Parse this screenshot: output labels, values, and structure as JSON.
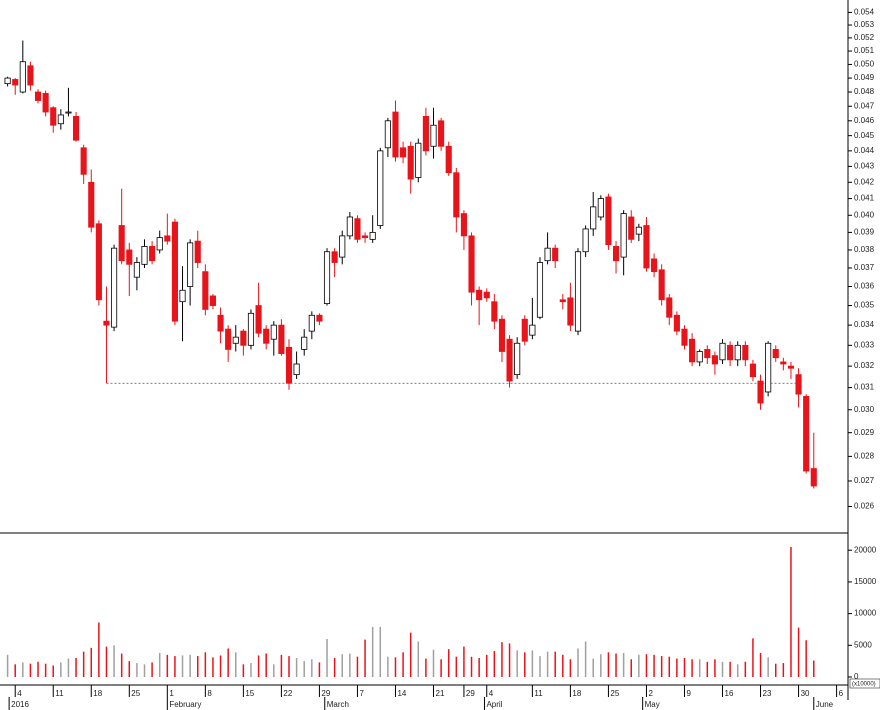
{
  "chart_data": {
    "type": "candlestick",
    "log_scale": true,
    "up_color": "#ffffff",
    "down_color": "#e8141b",
    "volume_up_color": "#a0a0a0",
    "hline": 0.0312,
    "open": [
      0.0486,
      0.0489,
      0.048,
      0.0499,
      0.048,
      0.0479,
      0.0469,
      0.0458,
      0.0466,
      0.0463,
      0.0442,
      0.042,
      0.0395,
      0.0342,
      0.0339,
      0.0394,
      0.038,
      0.0365,
      0.0372,
      0.0382,
      0.038,
      0.0388,
      0.0396,
      0.0352,
      0.036,
      0.0385,
      0.0368,
      0.0355,
      0.0345,
      0.0338,
      0.0331,
      0.0337,
      0.033,
      0.035,
      0.0338,
      0.0333,
      0.034,
      0.0329,
      0.0316,
      0.0328,
      0.0337,
      0.0345,
      0.0351,
      0.0379,
      0.0376,
      0.0388,
      0.0398,
      0.0388,
      0.0386,
      0.0394,
      0.0442,
      0.0466,
      0.0442,
      0.0443,
      0.0423,
      0.0463,
      0.0443,
      0.046,
      0.0443,
      0.0426,
      0.0401,
      0.0388,
      0.0358,
      0.0357,
      0.0352,
      0.0343,
      0.0333,
      0.0316,
      0.0343,
      0.0335,
      0.0344,
      0.0374,
      0.0381,
      0.0353,
      0.0354,
      0.0337,
      0.0379,
      0.0392,
      0.0399,
      0.0411,
      0.0382,
      0.0376,
      0.0399,
      0.0389,
      0.0394,
      0.0375,
      0.0369,
      0.0354,
      0.0345,
      0.0338,
      0.0333,
      0.0322,
      0.0328,
      0.0325,
      0.0323,
      0.033,
      0.0323,
      0.033,
      0.0321,
      0.0313,
      0.0308,
      0.0328,
      0.0322,
      0.032,
      0.0316,
      0.0306,
      0.0275
    ],
    "high": [
      0.0491,
      0.049,
      0.0518,
      0.0502,
      0.0482,
      0.0481,
      0.047,
      0.0468,
      0.0483,
      0.0466,
      0.0444,
      0.0428,
      0.0397,
      0.036,
      0.0383,
      0.0416,
      0.0384,
      0.0376,
      0.0386,
      0.0385,
      0.0391,
      0.0401,
      0.0398,
      0.0371,
      0.0386,
      0.0391,
      0.0372,
      0.0356,
      0.0349,
      0.034,
      0.034,
      0.0338,
      0.0348,
      0.0362,
      0.034,
      0.0342,
      0.0343,
      0.0333,
      0.0327,
      0.0338,
      0.0347,
      0.0346,
      0.0381,
      0.0381,
      0.0391,
      0.0402,
      0.04,
      0.039,
      0.04,
      0.0442,
      0.0462,
      0.0474,
      0.0446,
      0.0446,
      0.0448,
      0.0469,
      0.0469,
      0.0462,
      0.0446,
      0.0429,
      0.0403,
      0.039,
      0.036,
      0.0359,
      0.0356,
      0.0345,
      0.0335,
      0.0334,
      0.0345,
      0.0354,
      0.0376,
      0.039,
      0.0383,
      0.0356,
      0.0362,
      0.0381,
      0.0394,
      0.0414,
      0.0412,
      0.0413,
      0.0385,
      0.0403,
      0.0403,
      0.0395,
      0.0399,
      0.0378,
      0.0372,
      0.0356,
      0.0347,
      0.034,
      0.0336,
      0.0328,
      0.033,
      0.0327,
      0.0333,
      0.0332,
      0.0332,
      0.0332,
      0.0323,
      0.0316,
      0.0332,
      0.033,
      0.0324,
      0.0322,
      0.0319,
      0.0307,
      0.029
    ],
    "low": [
      0.0484,
      0.0478,
      0.0479,
      0.0481,
      0.0472,
      0.0463,
      0.0452,
      0.0454,
      0.0463,
      0.0446,
      0.0419,
      0.039,
      0.035,
      0.0312,
      0.0337,
      0.0372,
      0.0355,
      0.0358,
      0.037,
      0.0372,
      0.0378,
      0.0383,
      0.034,
      0.0332,
      0.035,
      0.037,
      0.0345,
      0.0348,
      0.0331,
      0.0322,
      0.0327,
      0.0325,
      0.0328,
      0.0334,
      0.0328,
      0.0325,
      0.0325,
      0.0309,
      0.0314,
      0.0325,
      0.0333,
      0.034,
      0.035,
      0.0365,
      0.0372,
      0.0386,
      0.0384,
      0.0384,
      0.0384,
      0.0392,
      0.0436,
      0.0433,
      0.0432,
      0.0413,
      0.042,
      0.0437,
      0.0435,
      0.044,
      0.0424,
      0.039,
      0.038,
      0.035,
      0.034,
      0.0352,
      0.0338,
      0.0322,
      0.031,
      0.0314,
      0.033,
      0.0333,
      0.0343,
      0.0372,
      0.037,
      0.0348,
      0.0337,
      0.0335,
      0.0376,
      0.0388,
      0.0397,
      0.038,
      0.0367,
      0.0366,
      0.0384,
      0.0385,
      0.0368,
      0.0365,
      0.035,
      0.034,
      0.0335,
      0.0328,
      0.032,
      0.032,
      0.0321,
      0.0316,
      0.0321,
      0.032,
      0.032,
      0.032,
      0.0313,
      0.03,
      0.0306,
      0.0322,
      0.0318,
      0.0314,
      0.0301,
      0.0273,
      0.0267
    ],
    "close": [
      0.049,
      0.0485,
      0.0502,
      0.0485,
      0.0474,
      0.0466,
      0.0457,
      0.0464,
      0.0466,
      0.0447,
      0.0425,
      0.0393,
      0.0353,
      0.034,
      0.0381,
      0.0374,
      0.0372,
      0.0373,
      0.0382,
      0.0374,
      0.0387,
      0.0385,
      0.0342,
      0.0358,
      0.0384,
      0.0373,
      0.0348,
      0.035,
      0.0337,
      0.0328,
      0.0334,
      0.033,
      0.0346,
      0.0336,
      0.0331,
      0.034,
      0.0326,
      0.0312,
      0.0321,
      0.0334,
      0.0345,
      0.0342,
      0.0379,
      0.0373,
      0.0388,
      0.0399,
      0.0386,
      0.0387,
      0.039,
      0.044,
      0.046,
      0.0436,
      0.0436,
      0.0422,
      0.0445,
      0.044,
      0.0457,
      0.0443,
      0.0426,
      0.0399,
      0.0388,
      0.0357,
      0.0353,
      0.0354,
      0.0342,
      0.0327,
      0.0313,
      0.0331,
      0.0332,
      0.034,
      0.0373,
      0.0381,
      0.0374,
      0.0352,
      0.034,
      0.0379,
      0.0392,
      0.0405,
      0.041,
      0.0383,
      0.0374,
      0.0401,
      0.0386,
      0.0393,
      0.037,
      0.0368,
      0.0353,
      0.0344,
      0.0337,
      0.033,
      0.0322,
      0.0327,
      0.0324,
      0.0321,
      0.0331,
      0.0323,
      0.033,
      0.0323,
      0.0315,
      0.0303,
      0.0331,
      0.0324,
      0.0321,
      0.0319,
      0.0307,
      0.0274,
      0.0268
    ],
    "volume": [
      3500,
      2000,
      2300,
      2100,
      2400,
      2100,
      1800,
      2300,
      2900,
      3000,
      4000,
      4600,
      8600,
      4800,
      5000,
      3700,
      2500,
      2200,
      2000,
      2300,
      3800,
      3500,
      3300,
      3400,
      3500,
      3300,
      3900,
      3100,
      3400,
      4500,
      3900,
      2000,
      2200,
      3400,
      3700,
      2000,
      3500,
      3300,
      3000,
      2500,
      2800,
      2300,
      6000,
      3000,
      3600,
      3700,
      3200,
      5900,
      7900,
      7900,
      3200,
      3100,
      3900,
      7000,
      5600,
      2900,
      4300,
      2800,
      4400,
      3200,
      4800,
      3200,
      3000,
      3500,
      4100,
      5500,
      5300,
      4200,
      3900,
      4200,
      3300,
      4000,
      4000,
      3500,
      2800,
      4500,
      5600,
      2900,
      3600,
      3900,
      3700,
      3800,
      2800,
      3500,
      3600,
      3500,
      3300,
      3200,
      2900,
      3000,
      2800,
      2800,
      2400,
      2800,
      2400,
      2400,
      2000,
      2400,
      6100,
      3800,
      3100,
      2100,
      2200,
      20500,
      7800,
      5800,
      2600
    ],
    "xlim": [
      -1,
      110.5
    ],
    "ylim": [
      0.025,
      0.055
    ],
    "yticks": [
      0.026,
      0.027,
      0.028,
      0.029,
      {
        "value": 0.03,
        "label": "0.030"
      },
      0.031,
      0.032,
      0.033,
      0.034,
      0.035,
      0.036,
      0.037,
      0.038,
      0.039,
      {
        "value": 0.04,
        "label": "0.040"
      },
      0.041,
      0.042,
      0.043,
      0.044,
      0.045,
      0.046,
      0.047,
      0.048,
      0.049,
      {
        "value": 0.05,
        "label": "0.050"
      },
      0.051,
      0.052,
      0.053,
      0.054
    ],
    "volume_ylim": [
      -1260,
      22400
    ],
    "volume_yticks": [
      0,
      5000,
      10000,
      15000,
      20000
    ],
    "volume_unit": "(x10000)",
    "xticks": [
      {
        "value": 1,
        "label": "4"
      },
      {
        "value": 6,
        "label": "11"
      },
      {
        "value": 11,
        "label": "18"
      },
      {
        "value": 16,
        "label": "25"
      },
      {
        "value": 21,
        "label": "1"
      },
      {
        "value": 26,
        "label": "8"
      },
      {
        "value": 31,
        "label": "15"
      },
      {
        "value": 36,
        "label": "22"
      },
      {
        "value": 41,
        "label": "29"
      },
      {
        "value": 46,
        "label": "7"
      },
      {
        "value": 51,
        "label": "14"
      },
      {
        "value": 56,
        "label": "21"
      },
      {
        "value": 60,
        "label": "29"
      },
      {
        "value": 63,
        "label": "4"
      },
      {
        "value": 69,
        "label": "11"
      },
      {
        "value": 74,
        "label": "18"
      },
      {
        "value": 79,
        "label": "25"
      },
      {
        "value": 84,
        "label": "2"
      },
      {
        "value": 89,
        "label": "9"
      },
      {
        "value": 94,
        "label": "16"
      },
      {
        "value": 99,
        "label": "23"
      },
      {
        "value": 104,
        "label": "30"
      },
      {
        "value": 109,
        "label": "6"
      }
    ],
    "month_ticks": [
      {
        "value": 0.2,
        "label": "2016"
      },
      {
        "value": 21,
        "label": "February"
      },
      {
        "value": 41.7,
        "label": "March"
      },
      {
        "value": 62.7,
        "label": "April"
      },
      {
        "value": 83.5,
        "label": "May"
      },
      {
        "value": 106,
        "label": "June"
      }
    ]
  }
}
